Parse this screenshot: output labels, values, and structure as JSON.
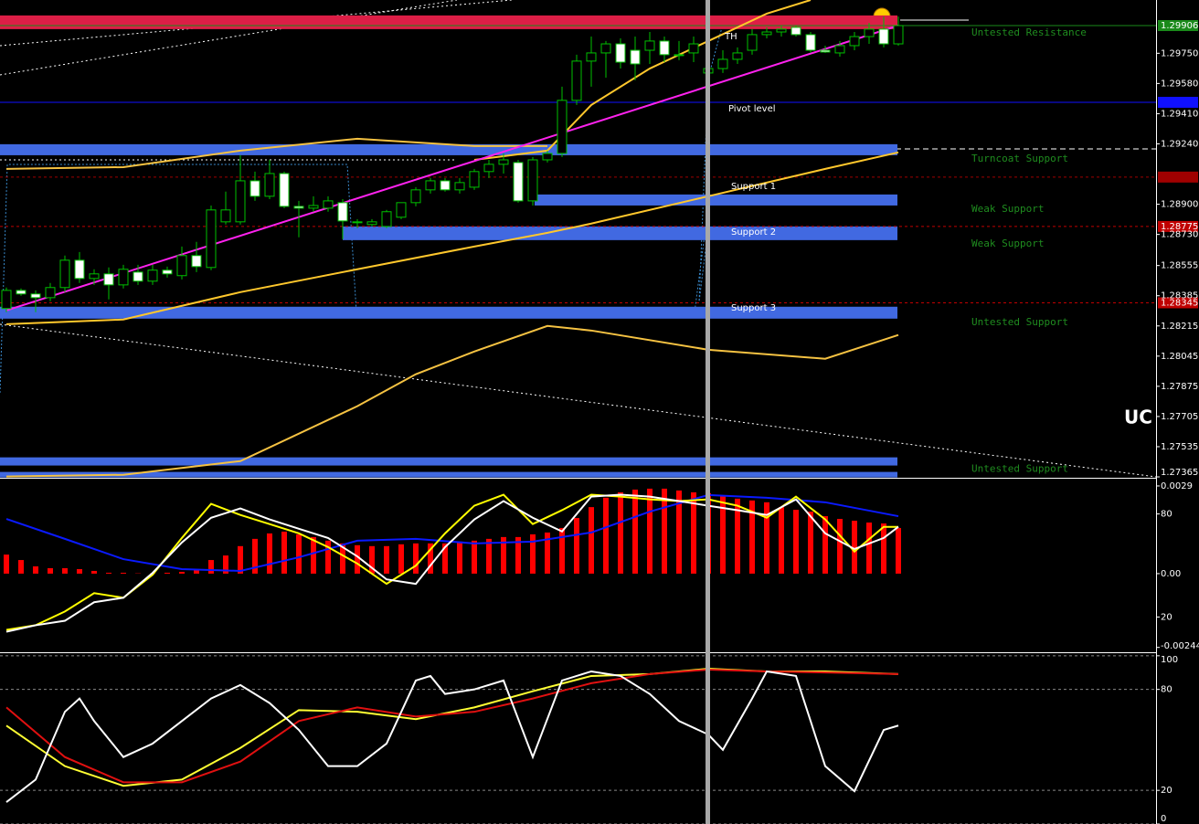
{
  "chart_data": [
    {
      "type": "candlestick",
      "ylim": [
        1.2736,
        1.3005
      ],
      "yticks": [
        {
          "value": 1.2975,
          "label": "1.29750"
        },
        {
          "value": 1.2958,
          "label": "1.29580"
        },
        {
          "value": 1.2941,
          "label": "1.29410"
        },
        {
          "value": 1.2924,
          "label": "1.29240"
        },
        {
          "value": 1.289,
          "label": "1.28900"
        },
        {
          "value": 1.2873,
          "label": "1.28730"
        },
        {
          "value": 1.28555,
          "label": "1.28555"
        },
        {
          "value": 1.28385,
          "label": "1.28385"
        },
        {
          "value": 1.28215,
          "label": "1.28215"
        },
        {
          "value": 1.28045,
          "label": "1.28045"
        },
        {
          "value": 1.27875,
          "label": "1.27875"
        },
        {
          "value": 1.27705,
          "label": "1.27705"
        },
        {
          "value": 1.27535,
          "label": "1.27535"
        },
        {
          "value": 1.27365,
          "label": "1.27365"
        }
      ],
      "up_color": "#00c000",
      "down_color": "#ffffff",
      "open": [
        1.28313,
        1.28415,
        1.28395,
        1.28374,
        1.28431,
        1.28585,
        1.28482,
        1.28508,
        1.28446,
        1.28518,
        1.28467,
        1.28529,
        1.28498,
        1.28611,
        1.28544,
        1.28801,
        1.28801,
        1.29032,
        1.28945,
        1.29073,
        1.28888,
        1.28878,
        1.28878,
        1.28909,
        1.28796,
        1.28786,
        1.28775,
        1.28827,
        1.28909,
        1.28981,
        1.29032,
        1.28981,
        1.28996,
        1.29084,
        1.29125,
        1.29135,
        1.28919,
        1.2915,
        1.29186,
        1.29485,
        1.29706,
        1.29752,
        1.29803,
        1.29767,
        1.29767,
        1.29819,
        1.29742,
        1.29752,
        1.29639,
        1.29664,
        1.29716,
        1.29767,
        1.29855,
        1.2987,
        1.29896,
        1.29855,
        1.29767,
        1.29752,
        1.29793,
        1.29844,
        1.29886,
        1.29803
      ],
      "high": [
        1.28431,
        1.28426,
        1.28415,
        1.28457,
        1.28611,
        1.28631,
        1.28534,
        1.28544,
        1.28559,
        1.28559,
        1.28559,
        1.28549,
        1.28662,
        1.28688,
        1.28893,
        1.28971,
        1.29176,
        1.29084,
        1.2915,
        1.29084,
        1.28919,
        1.28945,
        1.28945,
        1.28929,
        1.28816,
        1.28816,
        1.28868,
        1.28909,
        1.28996,
        1.29048,
        1.29048,
        1.29048,
        1.29099,
        1.2915,
        1.29186,
        1.2915,
        1.29166,
        1.29202,
        1.29562,
        1.29742,
        1.29844,
        1.29819,
        1.29834,
        1.29844,
        1.2987,
        1.29844,
        1.29819,
        1.29844,
        1.29767,
        1.29767,
        1.29783,
        1.29886,
        1.29896,
        1.29906,
        1.29906,
        1.2987,
        1.29793,
        1.29819,
        1.2987,
        1.29921,
        1.29957,
        1.29957
      ],
      "low": [
        1.28292,
        1.28385,
        1.28292,
        1.28354,
        1.28405,
        1.28457,
        1.28446,
        1.28364,
        1.28426,
        1.28446,
        1.28446,
        1.28487,
        1.28477,
        1.28518,
        1.28529,
        1.28786,
        1.28786,
        1.28919,
        1.28929,
        1.28878,
        1.28714,
        1.28858,
        1.28858,
        1.28703,
        1.28765,
        1.28775,
        1.28765,
        1.28816,
        1.28888,
        1.2896,
        1.28971,
        1.2896,
        1.28981,
        1.29048,
        1.29073,
        1.28909,
        1.28893,
        1.29135,
        1.29166,
        1.29459,
        1.29562,
        1.29613,
        1.29664,
        1.29598,
        1.2969,
        1.297,
        1.29711,
        1.297,
        1.29613,
        1.29639,
        1.2969,
        1.29742,
        1.29834,
        1.29844,
        1.29844,
        1.29752,
        1.29752,
        1.29731,
        1.29767,
        1.29803,
        1.29783,
        1.29793
      ],
      "close": [
        1.28415,
        1.28395,
        1.28374,
        1.28431,
        1.28585,
        1.28482,
        1.28508,
        1.28446,
        1.28534,
        1.28467,
        1.28529,
        1.28508,
        1.28611,
        1.28549,
        1.28868,
        1.28868,
        1.29032,
        1.28945,
        1.29073,
        1.28888,
        1.28878,
        1.28893,
        1.28919,
        1.28806,
        1.28801,
        1.28801,
        1.28858,
        1.28909,
        1.28981,
        1.29032,
        1.28981,
        1.29022,
        1.29084,
        1.29125,
        1.2915,
        1.28919,
        1.2915,
        1.29186,
        1.29485,
        1.29706,
        1.29752,
        1.29803,
        1.297,
        1.2969,
        1.29819,
        1.29742,
        1.29742,
        1.29803,
        1.29664,
        1.29716,
        1.29752,
        1.29855,
        1.2987,
        1.29886,
        1.29855,
        1.29767,
        1.29757,
        1.29793,
        1.29844,
        1.29886,
        1.29803,
        1.29906
      ],
      "overlays": [
        {
          "color": "#f5c242",
          "x": [
            0,
            8,
            16,
            24,
            32,
            37
          ],
          "values": [
            1.29099,
            1.29109,
            1.29202,
            1.29269,
            1.29228,
            1.29228
          ]
        },
        {
          "color": "#ffc72c",
          "x": [
            32,
            37,
            40,
            44,
            48,
            52,
            55
          ],
          "values": [
            1.2915,
            1.29202,
            1.29459,
            1.29664,
            1.29819,
            1.29973,
            1.3005
          ]
        },
        {
          "color": "#ffc72c",
          "x": [
            0,
            8,
            16,
            24,
            32,
            37,
            40,
            48,
            56,
            61
          ],
          "values": [
            1.28225,
            1.28251,
            1.28405,
            1.28534,
            1.28662,
            1.28739,
            1.28791,
            1.28945,
            1.29099,
            1.29192
          ]
        },
        {
          "color": "#f5c242",
          "x": [
            0,
            8,
            16,
            24,
            28,
            32,
            37,
            40,
            48,
            56,
            61
          ],
          "values": [
            1.27367,
            1.27377,
            1.27454,
            1.27763,
            1.27943,
            1.28071,
            1.28215,
            1.28189,
            1.28081,
            1.2803,
            1.28164
          ]
        },
        {
          "color": "#ff22ee",
          "x": [
            0,
            61
          ],
          "values": [
            1.28302,
            1.29906
          ]
        }
      ],
      "zones": [
        {
          "top": 1.29963,
          "bottom": 1.29886,
          "color": "#dc1e46",
          "label": "Untested Resistance"
        },
        {
          "top": 1.29238,
          "bottom": 1.29176,
          "color": "#4169e1",
          "label": "Turncoat Support"
        },
        {
          "top": 1.28955,
          "bottom": 1.28893,
          "color": "#4169e1",
          "label": "Weak Support"
        },
        {
          "top": 1.28775,
          "bottom": 1.28698,
          "color": "#4169e1",
          "label": "Weak Support"
        },
        {
          "top": 1.28323,
          "bottom": 1.28256,
          "color": "#4169e1",
          "label": "Untested Support"
        },
        {
          "top": 1.27475,
          "bottom": 1.27429,
          "color": "#4169e1",
          "label": "Untested Support"
        },
        {
          "top": 1.27393,
          "bottom": 1.27362,
          "color": "#4169e1"
        }
      ],
      "levels": [
        {
          "value": 1.29906,
          "label": "1.29906",
          "color": "#1a8a1a"
        },
        {
          "value": 1.29474,
          "color": "#1010ff"
        },
        {
          "value": 1.29053,
          "color": "#a00000"
        },
        {
          "value": 1.28775,
          "label": "1.28775",
          "color": "#c00000"
        },
        {
          "value": 1.28345,
          "label": "1.28345",
          "color": "#c00000"
        }
      ],
      "annotations": [
        "TH",
        "Pivot level",
        "Support 1",
        "Support 2",
        "Support 3",
        "UC"
      ]
    },
    {
      "type": "bar",
      "color": "#ff0000",
      "ylim": [
        -0.00257,
        0.00311
      ],
      "yticks": [
        0.0029,
        {
          "value": 0,
          "label": "0.00"
        },
        -0.00244
      ],
      "y2lim": [
        0,
        100
      ],
      "y2ticks": [
        80,
        20
      ],
      "values": [
        0.00063,
        0.00045,
        0.00024,
        0.00018,
        0.00018,
        0.00015,
        9e-05,
        3e-05,
        3e-05,
        1e-05,
        1e-05,
        3e-05,
        6e-05,
        0.00012,
        0.00045,
        0.0006,
        0.00091,
        0.00115,
        0.00133,
        0.00139,
        0.0013,
        0.00121,
        0.00109,
        0.001,
        0.00094,
        0.00091,
        0.00091,
        0.00097,
        0.001,
        0.001,
        0.001,
        0.00106,
        0.00109,
        0.00115,
        0.00121,
        0.00121,
        0.0013,
        0.00136,
        0.00151,
        0.00184,
        0.0022,
        0.00251,
        0.00269,
        0.00278,
        0.00281,
        0.00281,
        0.00275,
        0.00269,
        0.00266,
        0.00257,
        0.00248,
        0.00242,
        0.00236,
        0.0022,
        0.00211,
        0.00205,
        0.0019,
        0.00181,
        0.00175,
        0.00169,
        0.00166,
        0.00151
      ],
      "series": [
        {
          "color": "#0a1aff",
          "x": [
            0,
            4,
            8,
            12,
            16,
            20,
            24,
            28,
            32,
            36,
            40,
            44,
            48,
            52,
            56,
            61
          ],
          "values": [
            0.00181,
            0.00115,
            0.00048,
            0.00015,
            9e-05,
            0.00054,
            0.00109,
            0.00115,
            0.001,
            0.00106,
            0.00136,
            0.00205,
            0.0026,
            0.00251,
            0.00236,
            0.0019
          ]
        },
        {
          "color": "#ffff00",
          "axis": "y2",
          "x": [
            0,
            2,
            4,
            6,
            8,
            10,
            12,
            14,
            16,
            18,
            20,
            22,
            24,
            26,
            28,
            30,
            32,
            34,
            36,
            38,
            40,
            42,
            44,
            46,
            48,
            50,
            52,
            54,
            56,
            58,
            60,
            61
          ],
          "values": [
            12.5,
            15.2,
            23.2,
            33.9,
            31.2,
            44.6,
            66.0,
            85.9,
            79.4,
            74.1,
            68.7,
            60.7,
            51.1,
            39.3,
            49.9,
            68.7,
            84.8,
            91.2,
            74.1,
            82.2,
            91.2,
            90.1,
            88.5,
            87.5,
            88.5,
            84.8,
            77.8,
            90.1,
            76.8,
            58.1,
            72.5,
            72.5
          ]
        },
        {
          "color": "#ffffff",
          "axis": "y2",
          "x": [
            0,
            2,
            4,
            6,
            8,
            10,
            12,
            14,
            16,
            18,
            20,
            22,
            24,
            26,
            28,
            30,
            32,
            34,
            36,
            38,
            40,
            42,
            44,
            46,
            48,
            50,
            52,
            54,
            56,
            58,
            60,
            61
          ],
          "values": [
            11.4,
            15.2,
            17.8,
            28.6,
            31.2,
            45.7,
            63.4,
            77.8,
            83.2,
            76.8,
            71.4,
            66.0,
            55.3,
            41.9,
            39.3,
            60.7,
            76.8,
            87.5,
            77.8,
            69.8,
            90.1,
            91.2,
            90.1,
            87.5,
            84.8,
            82.2,
            79.4,
            88.5,
            68.7,
            59.6,
            66.0,
            72.5
          ]
        }
      ]
    },
    {
      "type": "line",
      "ylim": [
        0,
        101
      ],
      "yticks": [
        100,
        80,
        20,
        0
      ],
      "grid": true,
      "series": [
        {
          "color": "#ffff33",
          "x": [
            0,
            4,
            8,
            12,
            16,
            20,
            24,
            28,
            32,
            36,
            40,
            44,
            48,
            52,
            56,
            61
          ],
          "values": [
            58.5,
            34.4,
            22.7,
            26.4,
            45.2,
            67.7,
            66.7,
            62.3,
            69.3,
            78.9,
            88.0,
            89.1,
            92.3,
            90.7,
            90.7,
            89.1
          ]
        },
        {
          "color": "#e01010",
          "x": [
            0,
            4,
            8,
            12,
            16,
            20,
            24,
            28,
            32,
            36,
            40,
            44,
            48,
            52,
            56,
            61
          ],
          "values": [
            69.3,
            39.8,
            24.8,
            24.8,
            37.1,
            61.2,
            69.3,
            63.9,
            66.7,
            74.6,
            83.7,
            89.1,
            91.8,
            90.7,
            90.1,
            89.1
          ]
        },
        {
          "color": "#ffffff",
          "x": [
            0,
            2,
            4,
            5,
            6,
            8,
            10,
            12,
            14,
            16,
            18,
            20,
            22,
            24,
            26,
            28,
            29,
            30,
            32,
            34,
            36,
            38,
            40,
            42,
            44,
            46,
            48,
            49,
            51,
            52,
            54,
            56,
            58,
            60,
            61
          ],
          "values": [
            13.0,
            26.4,
            66.7,
            74.6,
            61.2,
            39.8,
            47.8,
            61.2,
            74.6,
            82.6,
            71.9,
            55.9,
            34.4,
            34.4,
            47.8,
            85.3,
            88.0,
            77.3,
            80.0,
            85.3,
            39.8,
            85.3,
            90.7,
            88.0,
            77.3,
            61.2,
            53.2,
            44.1,
            74.6,
            90.7,
            88.0,
            34.4,
            19.5,
            55.9,
            58.5
          ]
        }
      ]
    }
  ]
}
